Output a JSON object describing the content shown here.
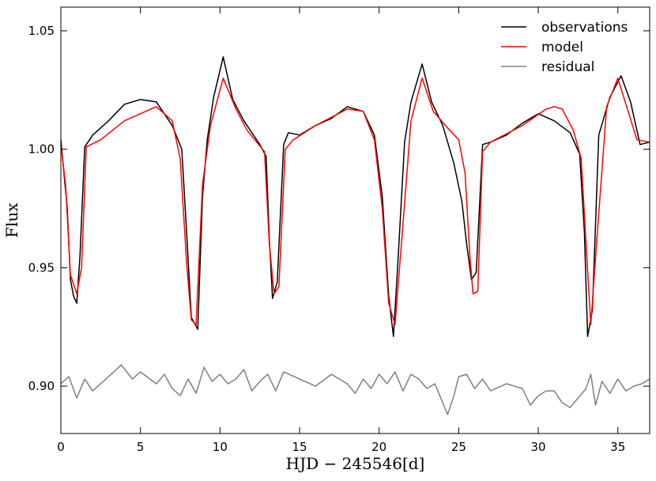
{
  "chart_data": {
    "type": "line",
    "xlabel": "HJD − 245546[d]",
    "ylabel": "Flux",
    "xlim": [
      0,
      37
    ],
    "ylim": [
      0.88,
      1.06
    ],
    "xticks": [
      0,
      5,
      10,
      15,
      20,
      25,
      30,
      35
    ],
    "yticks": [
      0.9,
      0.95,
      1.0,
      1.05
    ],
    "xtick_labels": [
      "0",
      "5",
      "10",
      "15",
      "20",
      "25",
      "30",
      "35"
    ],
    "ytick_labels": [
      "0.90",
      "0.95",
      "1.00",
      "1.05"
    ],
    "grid": false,
    "legend_position": "top-right",
    "colors": {
      "observations": "#000000",
      "model": "#ff0000",
      "residual": "#808080"
    },
    "series": [
      {
        "name": "observations",
        "x": [
          0,
          0.4,
          0.6,
          0.8,
          1.0,
          1.2,
          1.5,
          2,
          3,
          4,
          5,
          6,
          7,
          7.6,
          7.9,
          8.2,
          8.6,
          8.9,
          9.2,
          9.6,
          10.2,
          10.8,
          11.5,
          12.5,
          12.9,
          13.1,
          13.3,
          13.6,
          14.0,
          14.3,
          15,
          16,
          17,
          18,
          19,
          19.7,
          20.2,
          20.6,
          20.9,
          21.2,
          21.6,
          22.0,
          22.7,
          23.3,
          24.0,
          24.7,
          25.2,
          25.5,
          25.8,
          26.1,
          26.5,
          27,
          28,
          29,
          30,
          31,
          32,
          32.6,
          32.9,
          33.1,
          33.4,
          33.8,
          34.5,
          35.2,
          35.8,
          36.4,
          37
        ],
        "y": [
          1.004,
          0.975,
          0.945,
          0.938,
          0.935,
          0.955,
          1.001,
          1.006,
          1.012,
          1.019,
          1.021,
          1.02,
          1.01,
          1.0,
          0.965,
          0.929,
          0.924,
          0.98,
          1.004,
          1.022,
          1.039,
          1.021,
          1.012,
          1.002,
          0.997,
          0.962,
          0.937,
          0.944,
          1.002,
          1.007,
          1.006,
          1.01,
          1.013,
          1.018,
          1.016,
          1.006,
          0.98,
          0.938,
          0.921,
          0.955,
          1.003,
          1.02,
          1.036,
          1.02,
          1.01,
          0.994,
          0.978,
          0.96,
          0.945,
          0.948,
          1.002,
          1.003,
          1.006,
          1.011,
          1.015,
          1.012,
          1.007,
          0.998,
          0.965,
          0.921,
          0.932,
          1.006,
          1.022,
          1.031,
          1.02,
          1.002,
          1.003
        ]
      },
      {
        "name": "model",
        "x": [
          0,
          0.3,
          0.6,
          1.0,
          1.3,
          1.6,
          2.5,
          4,
          6,
          7,
          7.5,
          7.9,
          8.2,
          8.5,
          8.9,
          9.4,
          10.2,
          11.0,
          11.7,
          12.3,
          12.8,
          13.1,
          13.4,
          13.7,
          14.1,
          14.6,
          16,
          18,
          19,
          19.7,
          20.2,
          20.6,
          21.0,
          21.4,
          22.0,
          22.7,
          23.4,
          24.3,
          25.0,
          25.4,
          25.7,
          25.9,
          26.2,
          26.5,
          27,
          29,
          30.5,
          31.0,
          31.5,
          32.2,
          32.7,
          33.0,
          33.3,
          33.7,
          34.3,
          35.0,
          35.6,
          36.2,
          37
        ],
        "y": [
          1.002,
          0.985,
          0.947,
          0.939,
          0.95,
          1.001,
          1.004,
          1.012,
          1.018,
          1.012,
          0.996,
          0.952,
          0.928,
          0.926,
          0.985,
          1.01,
          1.03,
          1.017,
          1.008,
          1.003,
          0.999,
          0.96,
          0.939,
          0.942,
          1.0,
          1.004,
          1.01,
          1.017,
          1.016,
          1.004,
          0.975,
          0.935,
          0.926,
          0.96,
          1.012,
          1.03,
          1.016,
          1.009,
          1.004,
          0.99,
          0.955,
          0.939,
          0.94,
          0.999,
          1.003,
          1.01,
          1.017,
          1.018,
          1.017,
          1.008,
          0.996,
          0.96,
          0.926,
          0.964,
          1.018,
          1.03,
          1.017,
          1.004,
          1.003
        ]
      },
      {
        "name": "residual",
        "x": [
          0,
          0.5,
          1,
          1.5,
          2,
          3,
          3.8,
          4.5,
          5,
          6,
          6.5,
          7,
          7.5,
          8,
          8.5,
          9,
          9.5,
          10,
          10.5,
          11,
          11.5,
          12,
          12.5,
          13,
          13.5,
          14,
          15,
          16,
          17,
          18,
          18.5,
          19,
          19.5,
          20,
          20.5,
          21,
          21.5,
          22,
          22.5,
          23,
          23.5,
          24,
          24.3,
          24.7,
          25,
          25.5,
          26,
          26.5,
          27,
          28,
          29,
          29.5,
          30,
          30.5,
          31,
          31.5,
          32,
          32.5,
          33,
          33.3,
          33.6,
          34,
          34.5,
          35,
          35.5,
          36,
          36.5,
          37
        ],
        "y": [
          0.901,
          0.904,
          0.895,
          0.903,
          0.898,
          0.904,
          0.909,
          0.903,
          0.906,
          0.901,
          0.905,
          0.899,
          0.896,
          0.903,
          0.897,
          0.908,
          0.902,
          0.905,
          0.901,
          0.903,
          0.907,
          0.898,
          0.902,
          0.905,
          0.898,
          0.906,
          0.903,
          0.9,
          0.905,
          0.901,
          0.897,
          0.903,
          0.899,
          0.905,
          0.901,
          0.906,
          0.898,
          0.905,
          0.903,
          0.899,
          0.901,
          0.893,
          0.888,
          0.896,
          0.904,
          0.905,
          0.899,
          0.903,
          0.898,
          0.901,
          0.899,
          0.892,
          0.896,
          0.898,
          0.898,
          0.893,
          0.891,
          0.895,
          0.899,
          0.905,
          0.892,
          0.902,
          0.897,
          0.903,
          0.898,
          0.9,
          0.901,
          0.903
        ]
      }
    ]
  }
}
